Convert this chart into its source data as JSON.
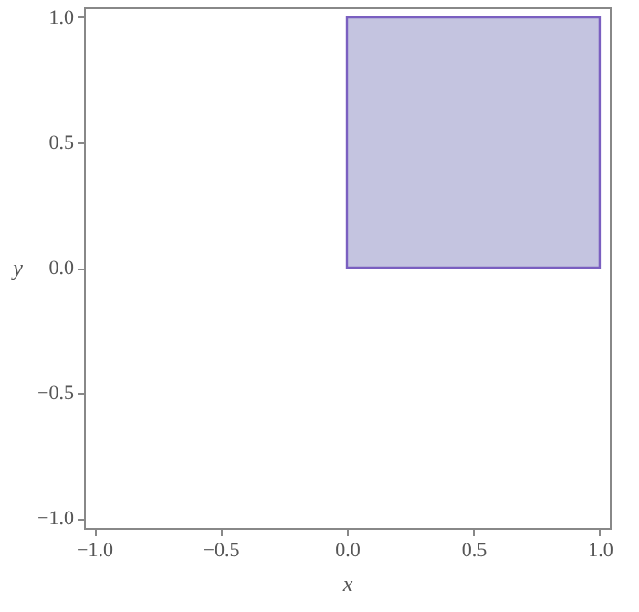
{
  "chart_data": {
    "type": "area",
    "xlabel": "x",
    "ylabel": "y",
    "x": [
      0,
      1
    ],
    "series": [
      {
        "color": "#c4c4e0",
        "values": [
          1,
          1
        ]
      }
    ],
    "xlim": [
      -1.04,
      1.04
    ],
    "ylim": [
      -1.04,
      1.04
    ],
    "xticks": [
      {
        "value": -1,
        "label": "−1.0"
      },
      {
        "value": -0.5,
        "label": "−0.5"
      },
      {
        "value": 0,
        "label": "0.0"
      },
      {
        "value": 0.5,
        "label": "0.5"
      },
      {
        "value": 1,
        "label": "1.0"
      }
    ],
    "yticks": [
      {
        "value": -1,
        "label": "−1.0"
      },
      {
        "value": -0.5,
        "label": "−0.5"
      },
      {
        "value": 0,
        "label": "0.0"
      },
      {
        "value": 0.5,
        "label": "0.5"
      },
      {
        "value": 1,
        "label": "1.0"
      }
    ]
  }
}
